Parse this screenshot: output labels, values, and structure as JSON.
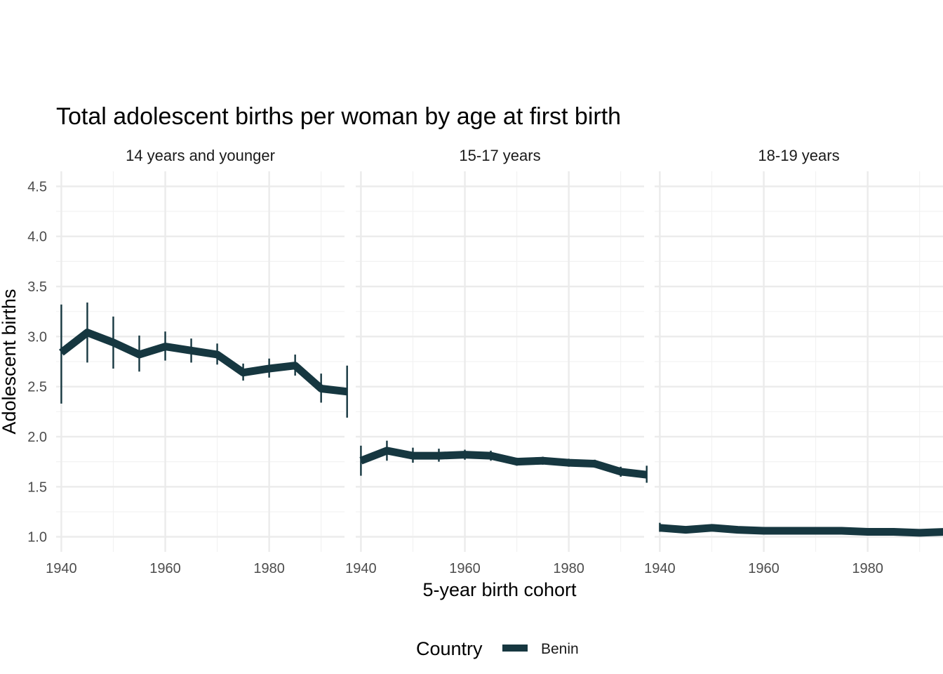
{
  "chart_data": {
    "type": "line",
    "title": "Total adolescent births per woman by age at first birth",
    "xlabel": "5-year birth cohort",
    "ylabel": "Adolescent births",
    "xlim": [
      1939,
      1994.5
    ],
    "ylim": [
      0.85,
      4.65
    ],
    "x_ticks": [
      1940,
      1960,
      1980
    ],
    "x_tick_labels": [
      "1940",
      "1960",
      "1980"
    ],
    "y_ticks": [
      1.0,
      1.5,
      2.0,
      2.5,
      3.0,
      3.5,
      4.0,
      4.5
    ],
    "y_tick_labels": [
      "1.0",
      "1.5",
      "2.0",
      "2.5",
      "3.0",
      "3.5",
      "4.0",
      "4.5"
    ],
    "grid": true,
    "legend": {
      "title": "Country",
      "position": "bottom",
      "entries": [
        "Benin"
      ]
    },
    "series_color": "#163740",
    "facets": [
      {
        "label": "14 years and younger",
        "series": [
          {
            "name": "Benin",
            "x": [
              1940,
              1945,
              1950,
              1955,
              1960,
              1965,
              1970,
              1975,
              1980,
              1985,
              1990,
              1995
            ],
            "values": [
              2.84,
              3.04,
              2.94,
              2.82,
              2.9,
              2.86,
              2.82,
              2.64,
              2.68,
              2.71,
              2.48,
              2.45
            ],
            "lower": [
              2.33,
              2.74,
              2.68,
              2.65,
              2.76,
              2.74,
              2.72,
              2.56,
              2.59,
              2.61,
              2.34,
              2.19
            ],
            "upper": [
              3.32,
              3.34,
              3.2,
              3.01,
              3.05,
              2.98,
              2.93,
              2.73,
              2.78,
              2.82,
              2.63,
              2.71
            ]
          }
        ]
      },
      {
        "label": "15-17 years",
        "series": [
          {
            "name": "Benin",
            "x": [
              1940,
              1945,
              1950,
              1955,
              1960,
              1965,
              1970,
              1975,
              1980,
              1985,
              1990,
              1995
            ],
            "values": [
              1.76,
              1.86,
              1.81,
              1.81,
              1.82,
              1.81,
              1.75,
              1.76,
              1.74,
              1.73,
              1.65,
              1.62
            ],
            "lower": [
              1.61,
              1.76,
              1.74,
              1.75,
              1.77,
              1.76,
              1.71,
              1.72,
              1.7,
              1.69,
              1.6,
              1.54
            ],
            "upper": [
              1.91,
              1.96,
              1.89,
              1.88,
              1.87,
              1.86,
              1.79,
              1.8,
              1.78,
              1.77,
              1.7,
              1.71
            ]
          }
        ]
      },
      {
        "label": "18-19 years",
        "series": [
          {
            "name": "Benin",
            "x": [
              1940,
              1945,
              1950,
              1955,
              1960,
              1965,
              1970,
              1975,
              1980,
              1985,
              1990,
              1995
            ],
            "values": [
              1.09,
              1.07,
              1.09,
              1.07,
              1.06,
              1.06,
              1.06,
              1.06,
              1.05,
              1.05,
              1.04,
              1.05
            ],
            "lower": [
              1.05,
              1.04,
              1.07,
              1.05,
              1.05,
              1.05,
              1.05,
              1.05,
              1.04,
              1.04,
              1.03,
              1.03
            ],
            "upper": [
              1.14,
              1.1,
              1.11,
              1.09,
              1.08,
              1.08,
              1.07,
              1.07,
              1.07,
              1.06,
              1.05,
              1.07
            ]
          }
        ]
      }
    ]
  }
}
